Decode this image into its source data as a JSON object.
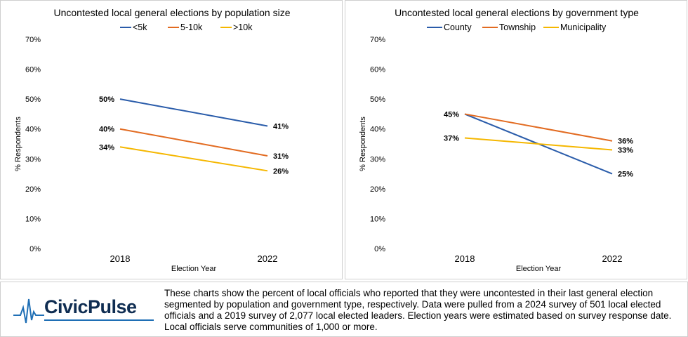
{
  "charts": [
    {
      "id": "population",
      "title": "Uncontested local general elections by population size",
      "xlabel": "Election Year",
      "ylabel": "% Respondents"
    },
    {
      "id": "government",
      "title": "Uncontested local general elections by government type",
      "xlabel": "Election Year",
      "ylabel": "% Respondents"
    }
  ],
  "chart_data": [
    {
      "type": "line",
      "title": "Uncontested local general elections by population size",
      "xlabel": "Election Year",
      "ylabel": "% Respondents",
      "categories": [
        "2018",
        "2022"
      ],
      "ylim": [
        0,
        70
      ],
      "yticks": [
        "0%",
        "10%",
        "20%",
        "30%",
        "40%",
        "50%",
        "60%",
        "70%"
      ],
      "legend_position": "top",
      "grid": false,
      "series": [
        {
          "name": "<5k",
          "color": "#2a5caa",
          "values": [
            50,
            41
          ],
          "labels": [
            "50%",
            "41%"
          ]
        },
        {
          "name": "5-10k",
          "color": "#e26b21",
          "values": [
            40,
            31
          ],
          "labels": [
            "40%",
            "31%"
          ]
        },
        {
          "name": ">10k",
          "color": "#f5b700",
          "values": [
            34,
            26
          ],
          "labels": [
            "34%",
            "26%"
          ]
        }
      ]
    },
    {
      "type": "line",
      "title": "Uncontested local general elections by government type",
      "xlabel": "Election Year",
      "ylabel": "% Respondents",
      "categories": [
        "2018",
        "2022"
      ],
      "ylim": [
        0,
        70
      ],
      "yticks": [
        "0%",
        "10%",
        "20%",
        "30%",
        "40%",
        "50%",
        "60%",
        "70%"
      ],
      "legend_position": "top",
      "grid": false,
      "series": [
        {
          "name": "County",
          "color": "#2a5caa",
          "values": [
            45,
            25
          ],
          "labels": [
            "45%",
            "25%"
          ]
        },
        {
          "name": "Township",
          "color": "#e26b21",
          "values": [
            45,
            36
          ],
          "labels": [
            "",
            "36%"
          ]
        },
        {
          "name": "Municipality",
          "color": "#f5b700",
          "values": [
            37,
            33
          ],
          "labels": [
            "37%",
            "33%"
          ]
        }
      ]
    }
  ],
  "footer": {
    "logo_text": "CivicPulse",
    "logo_color": "#0f2d52",
    "logo_accent": "#1f6fb5",
    "description": "These charts show the percent of local officials who reported that they were uncontested in their last general election segmented by population and government type, respectively. Data were pulled from a 2024 survey of 501 local elected officials and a 2019 survey of 2,077 local elected leaders. Election years were estimated based on survey response date. Local officials serve communities of 1,000 or more."
  }
}
